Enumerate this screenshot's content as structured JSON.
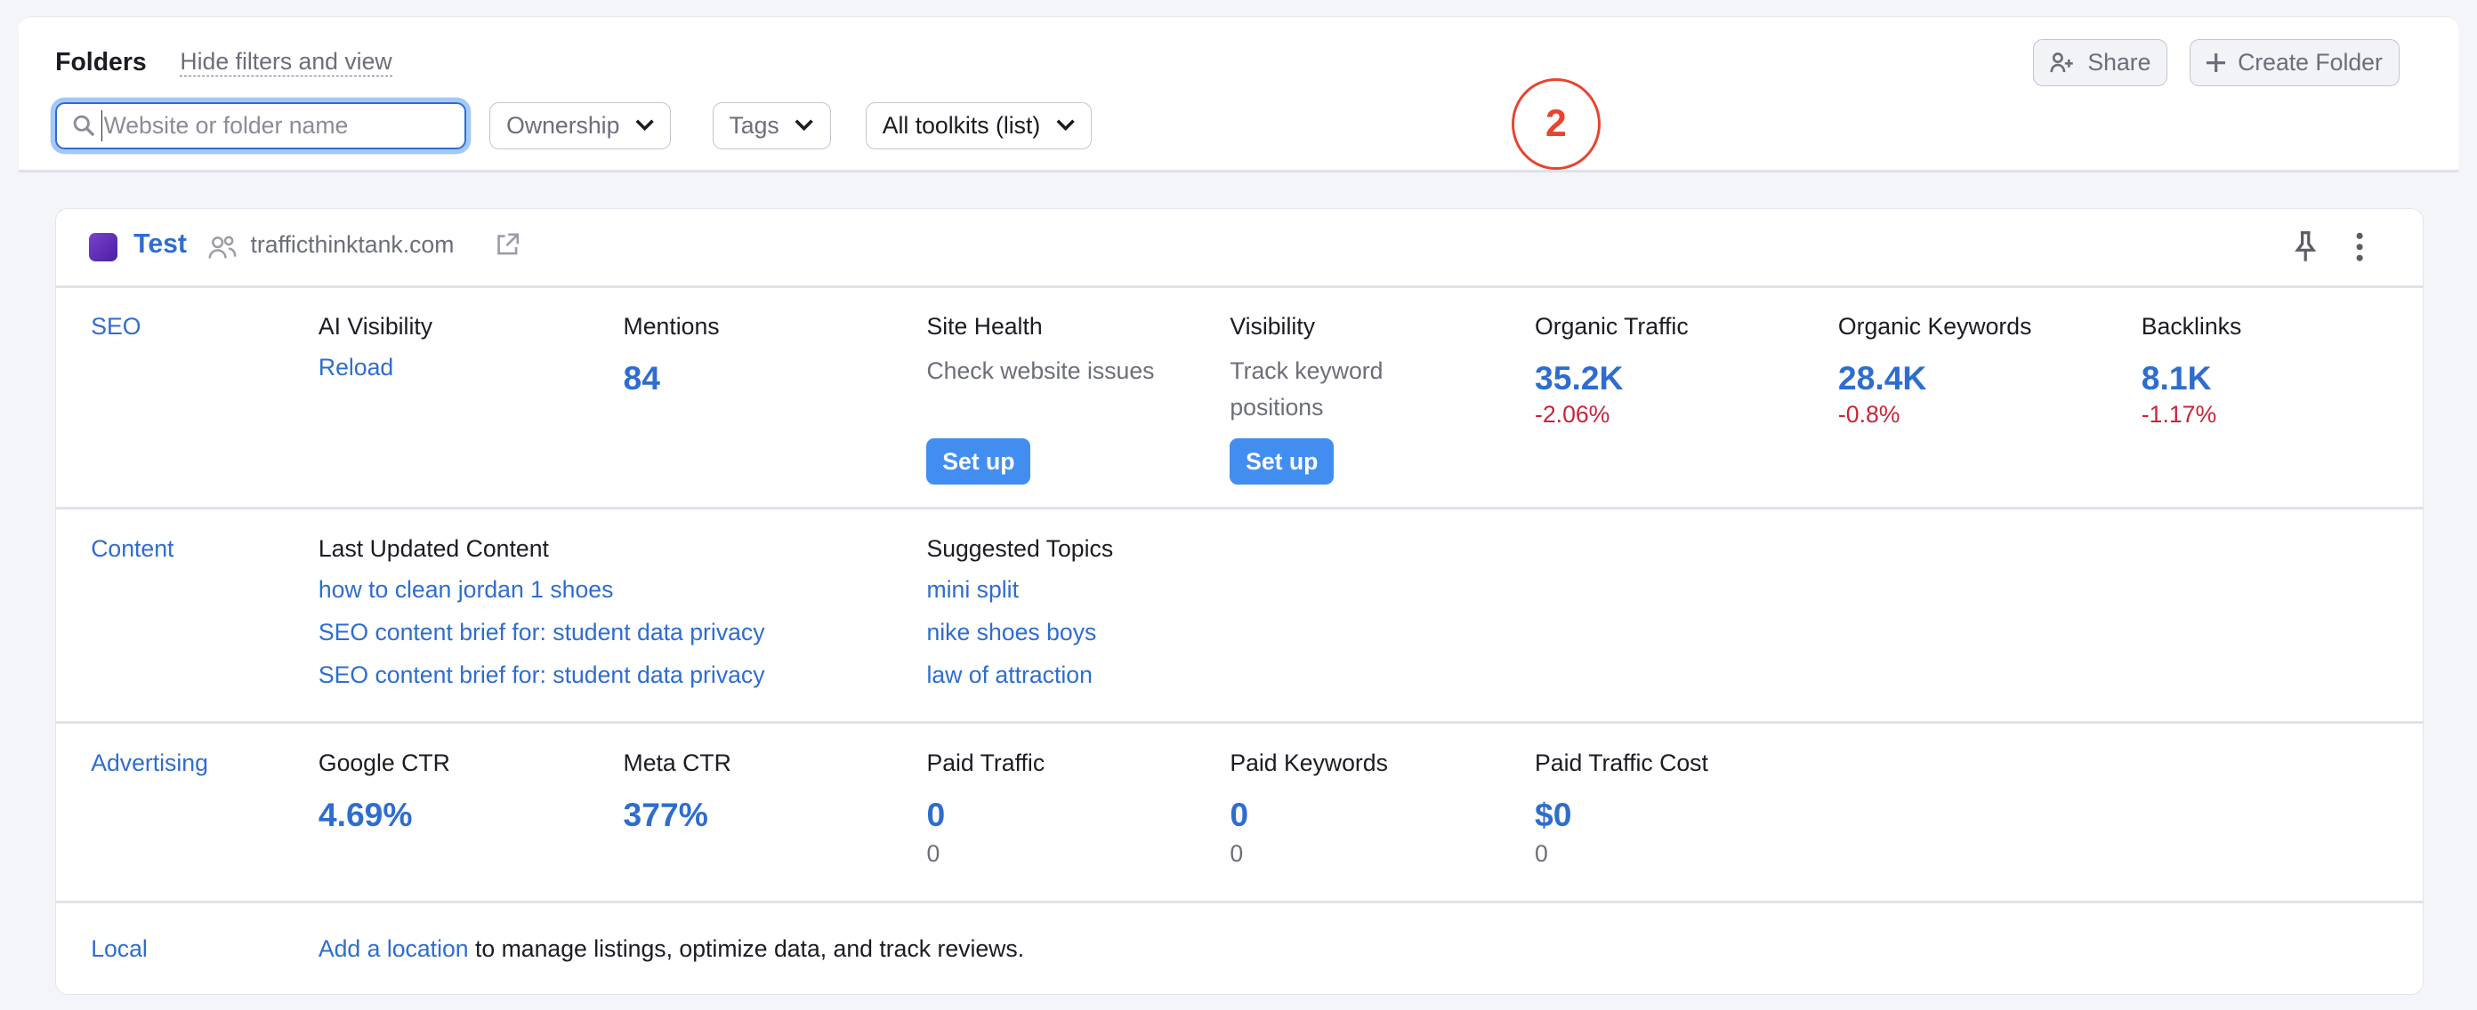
{
  "header": {
    "title": "Folders",
    "hide_link": "Hide filters and view",
    "search_placeholder": "Website or folder name",
    "filters": [
      "Ownership",
      "Tags",
      "All toolkits (list)"
    ],
    "share": "Share",
    "create_folder": "Create Folder"
  },
  "marker": "2",
  "project": {
    "name": "Test",
    "domain": "trafficthinktank.com",
    "seo": {
      "label": "SEO",
      "ai_visibility": {
        "title": "AI Visibility",
        "action": "Reload"
      },
      "mentions": {
        "title": "Mentions",
        "value": "84"
      },
      "site_health": {
        "title": "Site Health",
        "desc": "Check website issues",
        "button": "Set up"
      },
      "visibility": {
        "title": "Visibility",
        "desc": "Track keyword positions",
        "button": "Set up"
      },
      "organic_traffic": {
        "title": "Organic Traffic",
        "value": "35.2K",
        "change": "-2.06%"
      },
      "organic_keywords": {
        "title": "Organic Keywords",
        "value": "28.4K",
        "change": "-0.8%"
      },
      "backlinks": {
        "title": "Backlinks",
        "value": "8.1K",
        "change": "-1.17%"
      }
    },
    "content": {
      "label": "Content",
      "last_updated": {
        "title": "Last Updated Content",
        "items": [
          "how to clean jordan 1 shoes",
          "SEO content brief for: student data privacy",
          "SEO content brief for: student data privacy"
        ]
      },
      "suggested": {
        "title": "Suggested Topics",
        "items": [
          "mini split",
          "nike shoes boys",
          "law of attraction"
        ]
      }
    },
    "advertising": {
      "label": "Advertising",
      "google_ctr": {
        "title": "Google CTR",
        "value": "4.69%"
      },
      "meta_ctr": {
        "title": "Meta CTR",
        "value": "377%"
      },
      "paid_traffic": {
        "title": "Paid Traffic",
        "value": "0",
        "sub": "0"
      },
      "paid_keywords": {
        "title": "Paid Keywords",
        "value": "0",
        "sub": "0"
      },
      "paid_cost": {
        "title": "Paid Traffic Cost",
        "value": "$0",
        "sub": "0"
      }
    },
    "local": {
      "label": "Local",
      "link": "Add a location",
      "text": " to manage listings, optimize data, and track reviews."
    }
  },
  "colors": {
    "accent": "#2e6dcf",
    "button": "#428ef0",
    "negative": "#c9253a",
    "marker": "#e8442f"
  }
}
